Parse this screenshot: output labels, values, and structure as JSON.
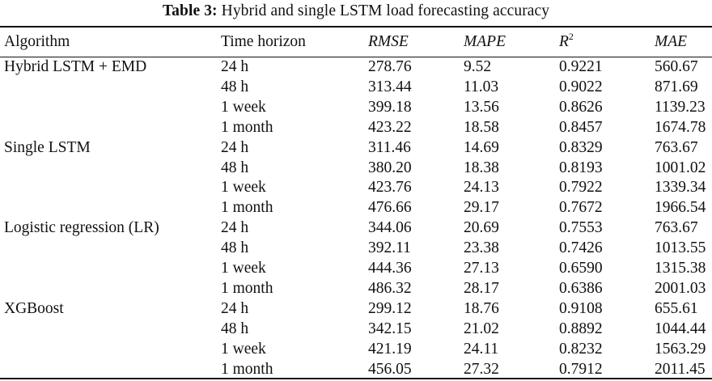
{
  "caption": {
    "label": "Table 3:",
    "text": "Hybrid and single LSTM load forecasting accuracy"
  },
  "table": {
    "headers": {
      "algorithm": "Algorithm",
      "time_horizon": "Time horizon",
      "rmse": "RMSE",
      "mape": "MAPE",
      "r2_base": "R",
      "r2_sup": "2",
      "mae": "MAE"
    },
    "rows": [
      {
        "algorithm": "Hybrid LSTM + EMD",
        "horizon": "24 h",
        "rmse": "278.76",
        "mape": "9.52",
        "r2": "0.9221",
        "mae": "560.67"
      },
      {
        "algorithm": "",
        "horizon": "48 h",
        "rmse": "313.44",
        "mape": "11.03",
        "r2": "0.9022",
        "mae": "871.69"
      },
      {
        "algorithm": "",
        "horizon": "1 week",
        "rmse": "399.18",
        "mape": "13.56",
        "r2": "0.8626",
        "mae": "1139.23"
      },
      {
        "algorithm": "",
        "horizon": "1 month",
        "rmse": "423.22",
        "mape": "18.58",
        "r2": "0.8457",
        "mae": "1674.78"
      },
      {
        "algorithm": "Single LSTM",
        "horizon": "24 h",
        "rmse": "311.46",
        "mape": "14.69",
        "r2": "0.8329",
        "mae": "763.67"
      },
      {
        "algorithm": "",
        "horizon": "48 h",
        "rmse": "380.20",
        "mape": "18.38",
        "r2": "0.8193",
        "mae": "1001.02"
      },
      {
        "algorithm": "",
        "horizon": "1 week",
        "rmse": "423.76",
        "mape": "24.13",
        "r2": "0.7922",
        "mae": "1339.34"
      },
      {
        "algorithm": "",
        "horizon": "1 month",
        "rmse": "476.66",
        "mape": "29.17",
        "r2": "0.7672",
        "mae": "1966.54"
      },
      {
        "algorithm": "Logistic regression (LR)",
        "horizon": "24 h",
        "rmse": "344.06",
        "mape": "20.69",
        "r2": "0.7553",
        "mae": "763.67"
      },
      {
        "algorithm": "",
        "horizon": "48 h",
        "rmse": "392.11",
        "mape": "23.38",
        "r2": "0.7426",
        "mae": "1013.55"
      },
      {
        "algorithm": "",
        "horizon": "1 week",
        "rmse": "444.36",
        "mape": "27.13",
        "r2": "0.6590",
        "mae": "1315.38"
      },
      {
        "algorithm": "",
        "horizon": "1 month",
        "rmse": "486.32",
        "mape": "28.17",
        "r2": "0.6386",
        "mae": "2001.03"
      },
      {
        "algorithm": "XGBoost",
        "horizon": "24 h",
        "rmse": "299.12",
        "mape": "18.76",
        "r2": "0.9108",
        "mae": "655.61"
      },
      {
        "algorithm": "",
        "horizon": "48 h",
        "rmse": "342.15",
        "mape": "21.02",
        "r2": "0.8892",
        "mae": "1044.44"
      },
      {
        "algorithm": "",
        "horizon": "1 week",
        "rmse": "421.19",
        "mape": "24.11",
        "r2": "0.8232",
        "mae": "1563.29"
      },
      {
        "algorithm": "",
        "horizon": "1 month",
        "rmse": "456.05",
        "mape": "27.32",
        "r2": "0.7912",
        "mae": "2011.45"
      }
    ]
  }
}
